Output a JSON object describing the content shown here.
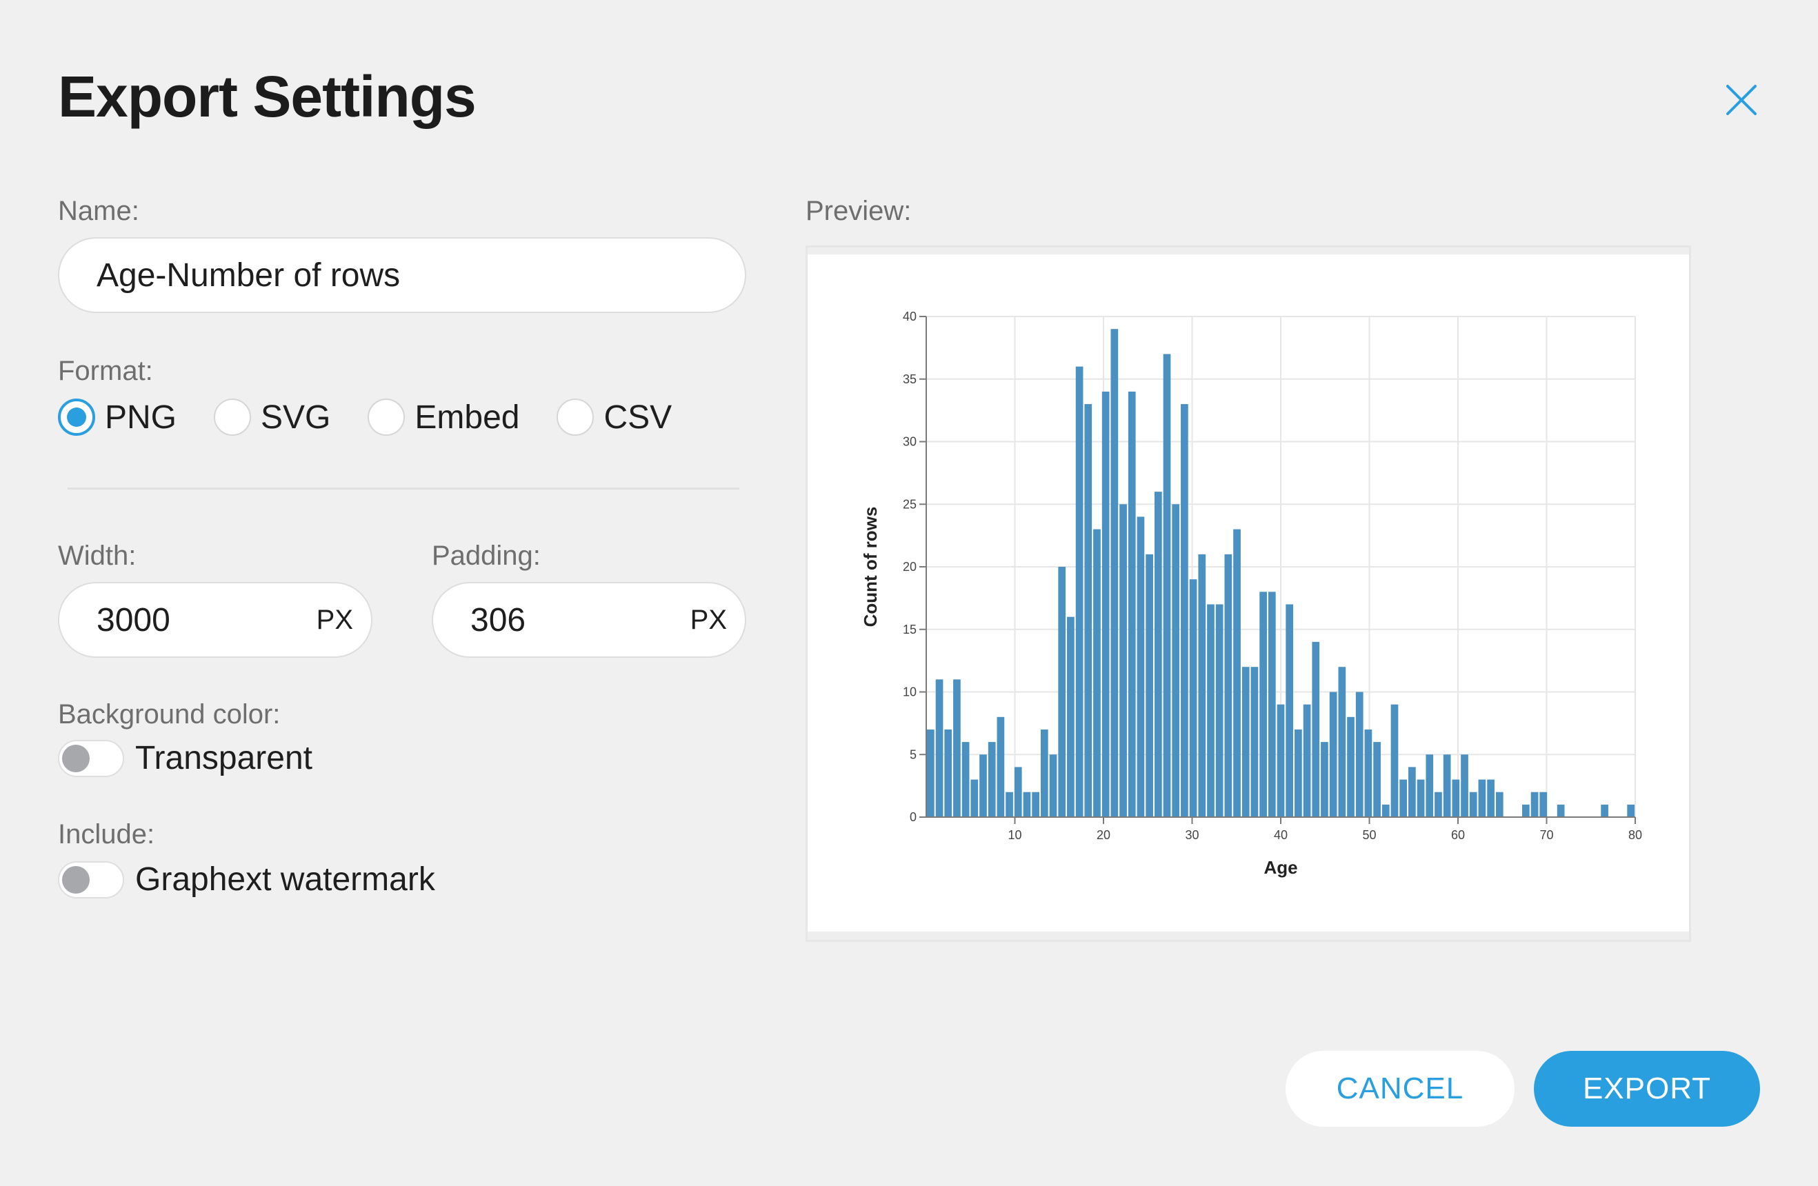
{
  "dialog": {
    "title": "Export Settings",
    "close_icon": "close-icon"
  },
  "name": {
    "label": "Name:",
    "value": "Age-Number of rows"
  },
  "format": {
    "label": "Format:",
    "options": [
      {
        "label": "PNG",
        "selected": true
      },
      {
        "label": "SVG",
        "selected": false
      },
      {
        "label": "Embed",
        "selected": false
      },
      {
        "label": "CSV",
        "selected": false
      }
    ]
  },
  "width": {
    "label": "Width:",
    "value": "3000",
    "unit": "PX"
  },
  "padding": {
    "label": "Padding:",
    "value": "306",
    "unit": "PX"
  },
  "background": {
    "label": "Background color:",
    "toggle_label": "Transparent",
    "on": false
  },
  "include": {
    "label": "Include:",
    "toggle_label": "Graphext watermark",
    "on": false
  },
  "preview": {
    "label": "Preview:"
  },
  "buttons": {
    "cancel": "CANCEL",
    "export": "EXPORT"
  },
  "colors": {
    "accent": "#2a9fdf",
    "bar": "#4a90c0"
  },
  "chart_data": {
    "type": "bar",
    "xlabel": "Age",
    "ylabel": "Count of rows",
    "xlim": [
      0,
      80
    ],
    "ylim": [
      0,
      40
    ],
    "xticks": [
      10,
      20,
      30,
      40,
      50,
      60,
      70,
      80
    ],
    "yticks": [
      0,
      5,
      10,
      15,
      20,
      25,
      30,
      35,
      40
    ],
    "grid": true,
    "x": [
      0.42,
      1,
      2,
      3,
      4,
      5,
      6,
      7,
      8,
      9,
      10,
      11,
      12,
      13,
      14,
      15,
      16,
      17,
      18,
      19,
      20,
      21,
      22,
      23,
      24,
      25,
      26,
      27,
      28,
      29,
      30,
      31,
      32,
      33,
      34,
      35,
      36,
      37,
      38,
      39,
      40,
      41,
      42,
      43,
      44,
      45,
      46,
      47,
      48,
      49,
      50,
      51,
      52,
      53,
      54,
      55,
      56,
      57,
      58,
      59,
      60,
      61,
      62,
      63,
      64,
      65,
      66,
      67,
      68,
      69,
      70,
      71,
      72,
      73,
      74,
      75,
      76,
      77,
      78,
      79,
      80
    ],
    "values": [
      7,
      11,
      7,
      11,
      6,
      3,
      5,
      6,
      8,
      2,
      4,
      2,
      2,
      7,
      5,
      20,
      16,
      36,
      33,
      23,
      34,
      39,
      25,
      34,
      24,
      21,
      26,
      37,
      25,
      33,
      19,
      21,
      17,
      17,
      21,
      23,
      12,
      12,
      18,
      18,
      9,
      17,
      7,
      9,
      14,
      6,
      10,
      12,
      8,
      10,
      7,
      6,
      1,
      9,
      3,
      4,
      3,
      5,
      2,
      5,
      3,
      5,
      2,
      3,
      3,
      2,
      0,
      0,
      1,
      2,
      2,
      0,
      1,
      0,
      0,
      0,
      0,
      1,
      0,
      0,
      1
    ]
  }
}
